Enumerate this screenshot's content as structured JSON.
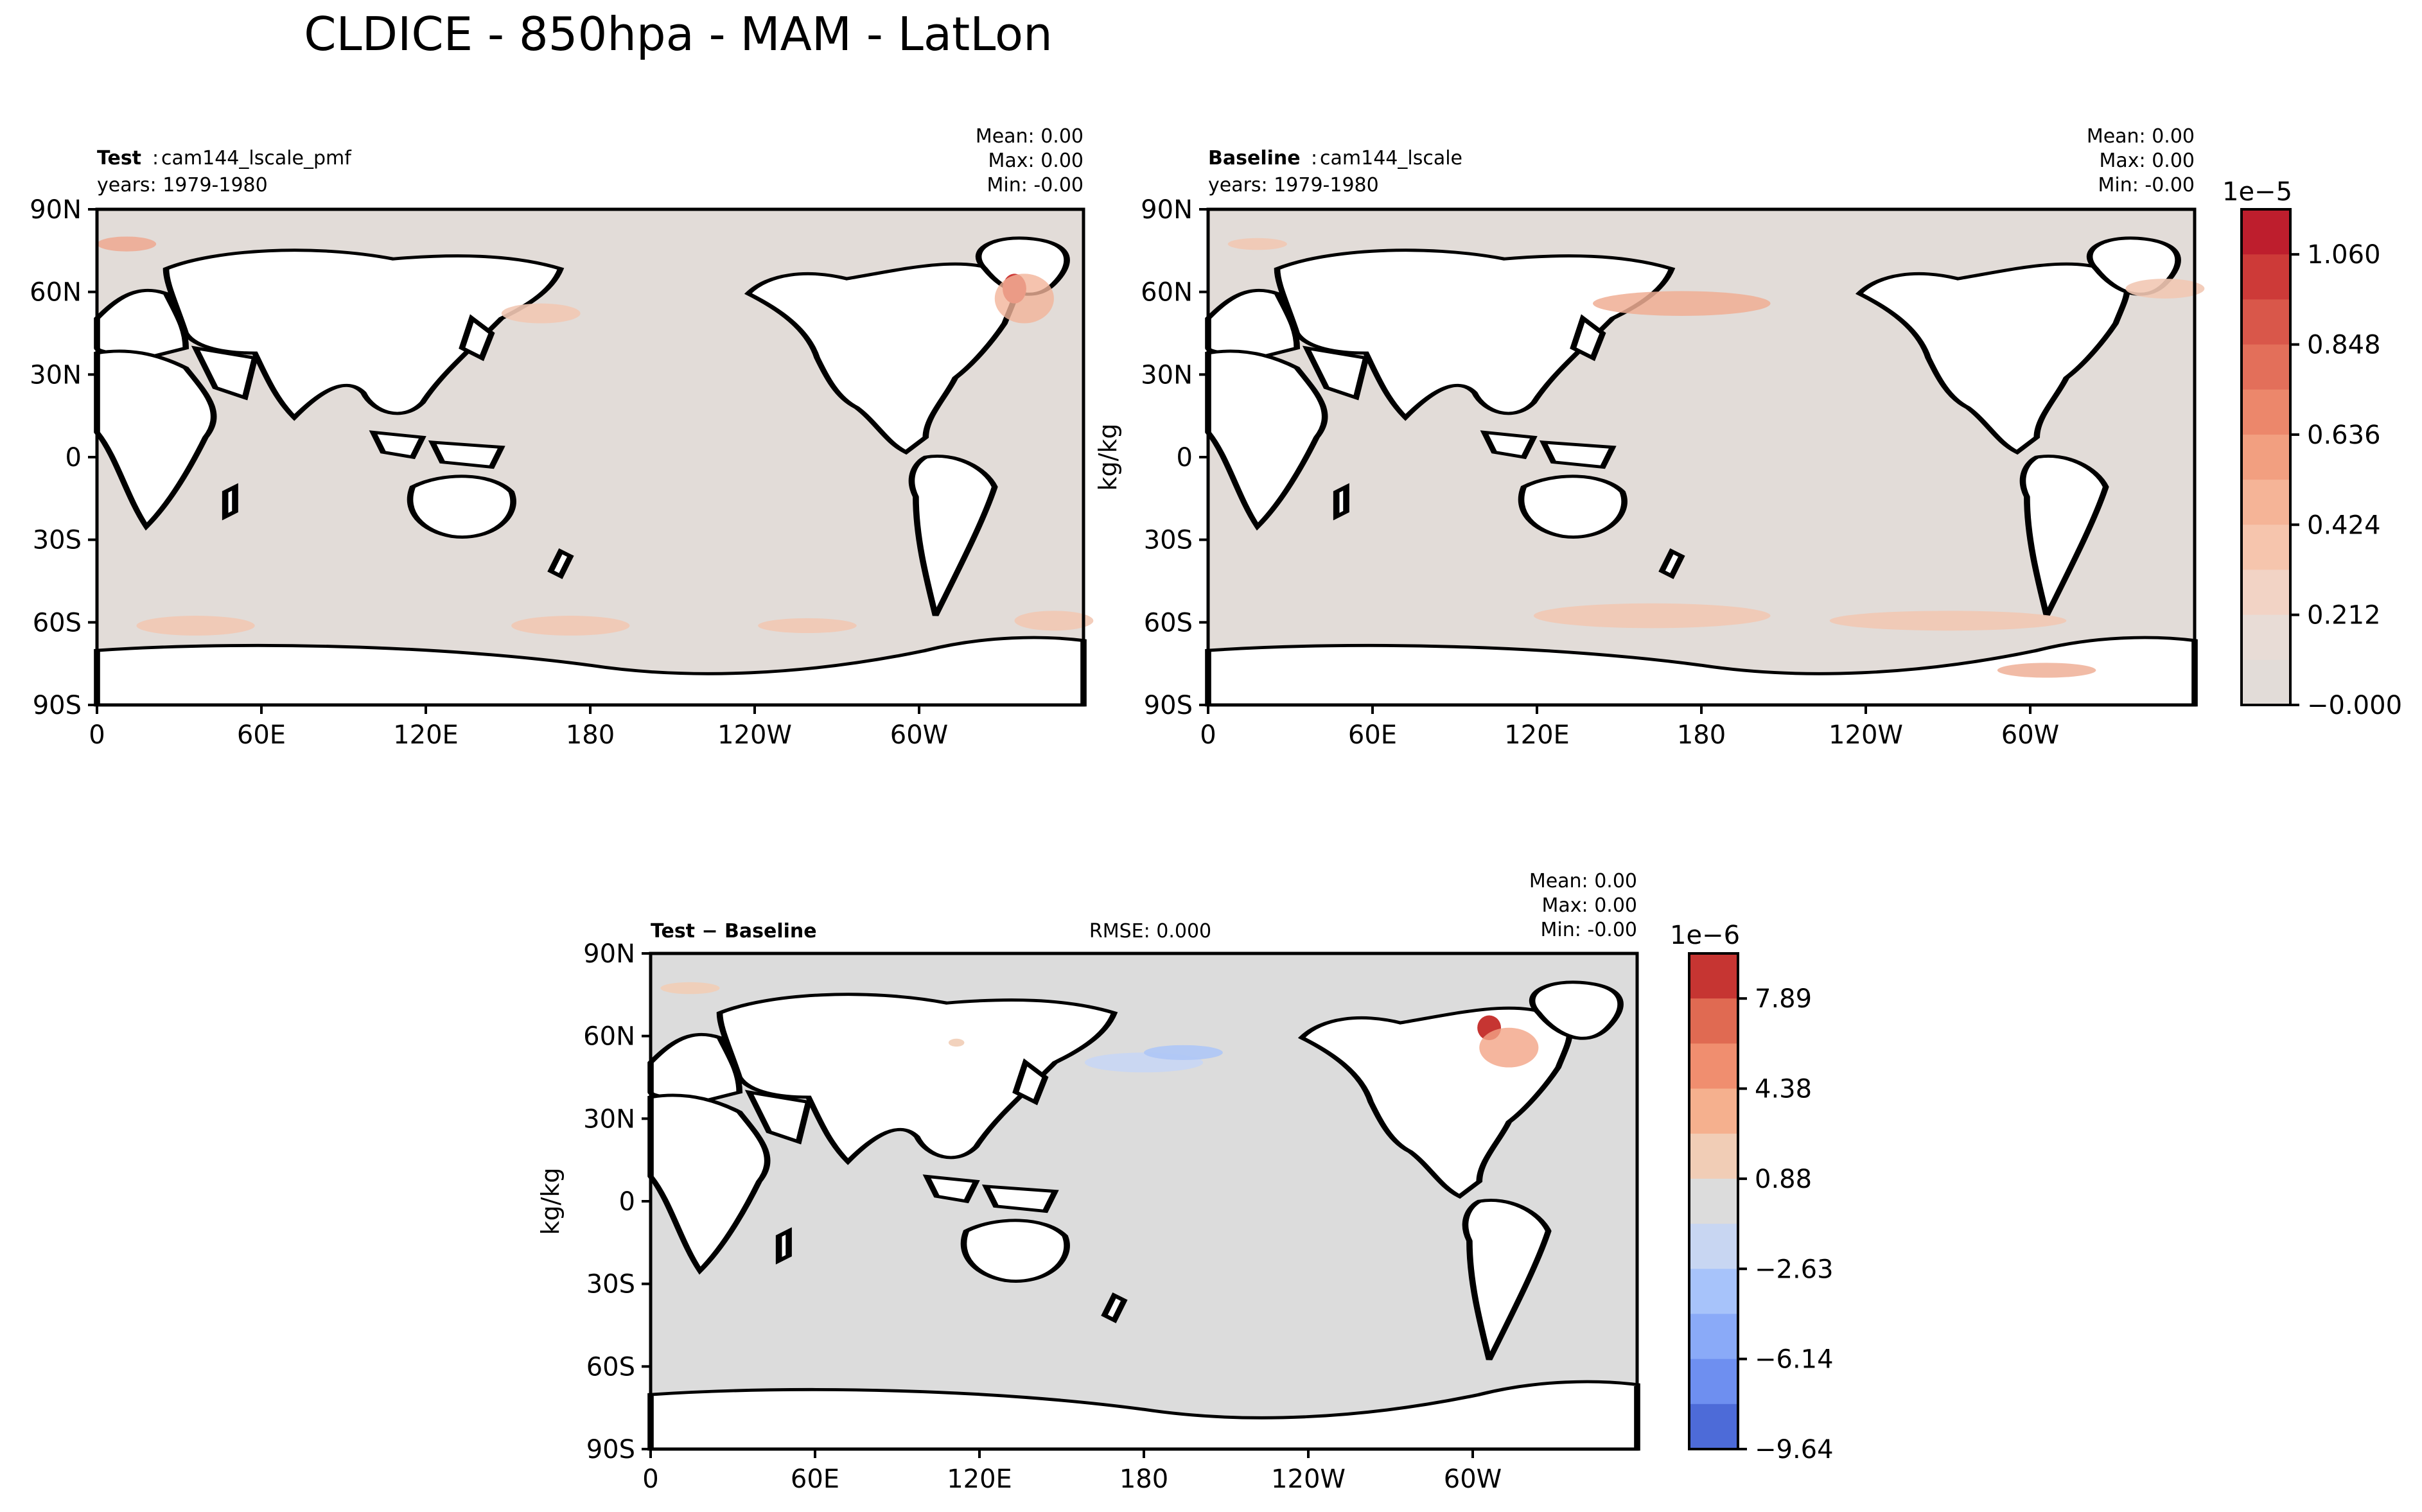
{
  "figure": {
    "title": "CLDICE - 850hpa - MAM - LatLon"
  },
  "axes": {
    "lat_ticks": [
      "90N",
      "60N",
      "30N",
      "0",
      "30S",
      "60S",
      "90S"
    ],
    "lon_ticks": [
      "0",
      "60E",
      "120E",
      "180",
      "120W",
      "60W"
    ],
    "unit": "kg/kg"
  },
  "panels": {
    "test": {
      "label_bold": "Test",
      "label_name": "cam144_lscale_pmf",
      "years": "years: 1979-1980",
      "mean": "Mean:  0.00",
      "max": "Max:  0.00",
      "min": "Min: -0.00"
    },
    "baseline": {
      "label_bold": "Baseline",
      "label_name": "cam144_lscale",
      "years": "years: 1979-1980",
      "mean": "Mean:  0.00",
      "max": "Max:  0.00",
      "min": "Min: -0.00",
      "ylabel": "kg/kg"
    },
    "diff": {
      "label": "Test − Baseline",
      "rmse": "RMSE: 0.000",
      "mean": "Mean:  0.00",
      "max": "Max:  0.00",
      "min": "Min: -0.00",
      "ylabel": "kg/kg"
    }
  },
  "colorbars": {
    "top": {
      "exponent": "1e−5",
      "labels": [
        "1.060",
        "0.848",
        "0.636",
        "0.424",
        "0.212",
        "−0.000"
      ],
      "colors": [
        "#be1e2d",
        "#cd3a38",
        "#d9574a",
        "#e36f5a",
        "#ec876b",
        "#f29f80",
        "#f5b497",
        "#f6c5ad",
        "#f2d3c5",
        "#e8dcd6",
        "#e2dcd8"
      ]
    },
    "bottom": {
      "exponent": "1e−6",
      "labels": [
        "7.89",
        "4.38",
        "0.88",
        "−2.63",
        "−6.14",
        "−9.64"
      ],
      "colors": [
        "#c63532",
        "#e06a52",
        "#f08e6f",
        "#f5b08e",
        "#f1cdb6",
        "#dcdcdc",
        "#c8d6f2",
        "#a7c3fa",
        "#8aaaf8",
        "#6e8ff0",
        "#4d6bd8"
      ]
    }
  }
}
